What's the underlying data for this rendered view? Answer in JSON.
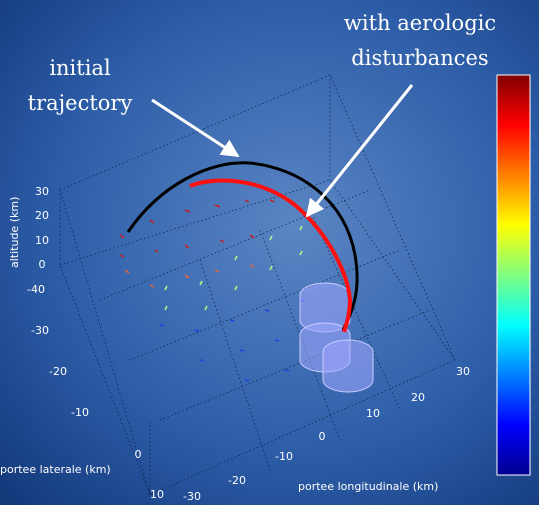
{
  "annotations": {
    "initial": [
      "initial",
      "trajectory"
    ],
    "disturbed": [
      "with aerologic",
      "disturbances"
    ]
  },
  "axes": {
    "altitude": {
      "label": "altitude (km)",
      "ticks": [
        "30",
        "20",
        "10",
        "0"
      ]
    },
    "lateral": {
      "label": "portee laterale (km)",
      "ticks": [
        "-40",
        "-30",
        "-20",
        "-10",
        "0",
        "10"
      ]
    },
    "longitudinal": {
      "label": "portee longitudinale (km)",
      "ticks": [
        "-30",
        "-20",
        "-10",
        "0",
        "10",
        "20",
        "30"
      ]
    }
  }
}
